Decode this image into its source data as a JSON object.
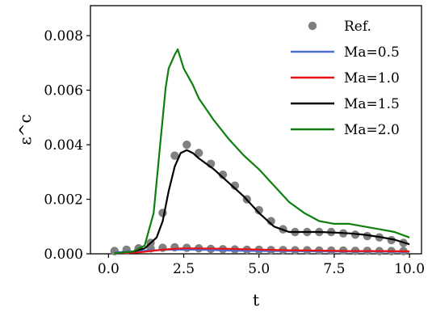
{
  "chart_data": {
    "type": "line",
    "xlabel": "t",
    "ylabel": "ε^c",
    "xlim": [
      -0.6,
      10.4
    ],
    "ylim": [
      0.0,
      0.0091
    ],
    "x_ticks": [
      "0.0",
      "2.5",
      "5.0",
      "7.5",
      "10.0"
    ],
    "x_tick_values": [
      0.0,
      2.5,
      5.0,
      7.5,
      10.0
    ],
    "y_ticks": [
      "0.000",
      "0.002",
      "0.004",
      "0.006",
      "0.008"
    ],
    "y_tick_values": [
      0.0,
      0.002,
      0.004,
      0.006,
      0.008
    ],
    "grid": false,
    "legend_position": "top-right",
    "series": [
      {
        "name": "Ref.",
        "style": "markers",
        "color": "#808080",
        "x": [
          0.2,
          0.6,
          1.0,
          1.4,
          1.8,
          2.2,
          2.6,
          3.0,
          3.4,
          3.8,
          4.2,
          4.6,
          5.0,
          5.4,
          5.8,
          6.2,
          6.6,
          7.0,
          7.4,
          7.8,
          8.2,
          8.6,
          9.0,
          9.4,
          9.8,
          0.2,
          0.6,
          1.0,
          1.4,
          1.8,
          2.2,
          2.6,
          3.0,
          3.4,
          3.8,
          4.2,
          4.6,
          5.0,
          5.4,
          5.8,
          6.2,
          6.6,
          7.0,
          7.4,
          7.8,
          8.2,
          8.6,
          9.0,
          9.4,
          9.8
        ],
        "y": [
          0.0001,
          0.00015,
          0.0002,
          0.0002,
          0.00022,
          0.00024,
          0.00022,
          0.0002,
          0.00018,
          0.00017,
          0.00016,
          0.00015,
          0.00015,
          0.00014,
          0.00014,
          0.00013,
          0.00013,
          0.00012,
          0.00012,
          0.00012,
          0.00011,
          0.00011,
          0.0001,
          0.0001,
          0.0001,
          0.0001,
          0.00012,
          0.00018,
          0.0004,
          0.0015,
          0.0036,
          0.004,
          0.0037,
          0.0033,
          0.0029,
          0.0025,
          0.002,
          0.0016,
          0.0012,
          0.0009,
          0.0008,
          0.0008,
          0.0008,
          0.0008,
          0.00075,
          0.0007,
          0.00065,
          0.0006,
          0.0005,
          0.0004
        ]
      },
      {
        "name": "Ma=0.5",
        "style": "line",
        "color": "#4a6fd6",
        "x": [
          0.2,
          1.0,
          2.0,
          3.0,
          4.0,
          5.0,
          6.0,
          7.0,
          8.0,
          9.0,
          10.0
        ],
        "y": [
          5e-05,
          0.0001,
          0.00015,
          0.00015,
          0.00012,
          0.0001,
          0.0001,
          9e-05,
          8e-05,
          8e-05,
          7e-05
        ]
      },
      {
        "name": "Ma=1.0",
        "style": "line",
        "color": "#ee1111",
        "x": [
          0.2,
          1.0,
          1.8,
          2.4,
          3.0,
          4.0,
          5.0,
          6.0,
          7.0,
          8.0,
          9.0,
          10.0
        ],
        "y": [
          2e-05,
          5e-05,
          0.00015,
          0.0002,
          0.0002,
          0.00018,
          0.00015,
          0.00013,
          0.00012,
          0.0001,
          0.0001,
          9e-05
        ]
      },
      {
        "name": "Ma=1.5",
        "style": "line",
        "color": "#000000",
        "x": [
          0.2,
          0.8,
          1.2,
          1.6,
          1.8,
          2.0,
          2.2,
          2.4,
          2.6,
          2.8,
          3.0,
          3.5,
          4.0,
          4.5,
          5.0,
          5.5,
          6.0,
          6.5,
          7.0,
          7.5,
          8.0,
          8.5,
          9.0,
          9.5,
          10.0
        ],
        "y": [
          2e-05,
          8e-05,
          0.0002,
          0.0006,
          0.0012,
          0.0023,
          0.0032,
          0.0037,
          0.0038,
          0.0037,
          0.0035,
          0.0031,
          0.0026,
          0.0021,
          0.0015,
          0.001,
          0.0008,
          0.0008,
          0.0008,
          0.00078,
          0.00075,
          0.0007,
          0.00062,
          0.00052,
          0.00035
        ]
      },
      {
        "name": "Ma=2.0",
        "style": "line",
        "color": "#0f7f0f",
        "x": [
          0.2,
          0.8,
          1.2,
          1.5,
          1.7,
          1.9,
          2.0,
          2.2,
          2.3,
          2.5,
          2.8,
          3.0,
          3.5,
          4.0,
          4.5,
          5.0,
          5.5,
          6.0,
          6.5,
          7.0,
          7.5,
          8.0,
          8.5,
          9.0,
          9.5,
          10.0
        ],
        "y": [
          2e-05,
          8e-05,
          0.0003,
          0.0015,
          0.0038,
          0.0061,
          0.0068,
          0.0073,
          0.0075,
          0.0068,
          0.0062,
          0.0057,
          0.0049,
          0.0042,
          0.0036,
          0.0031,
          0.0025,
          0.0019,
          0.0015,
          0.0012,
          0.0011,
          0.0011,
          0.001,
          0.0009,
          0.0008,
          0.0006
        ]
      }
    ]
  }
}
